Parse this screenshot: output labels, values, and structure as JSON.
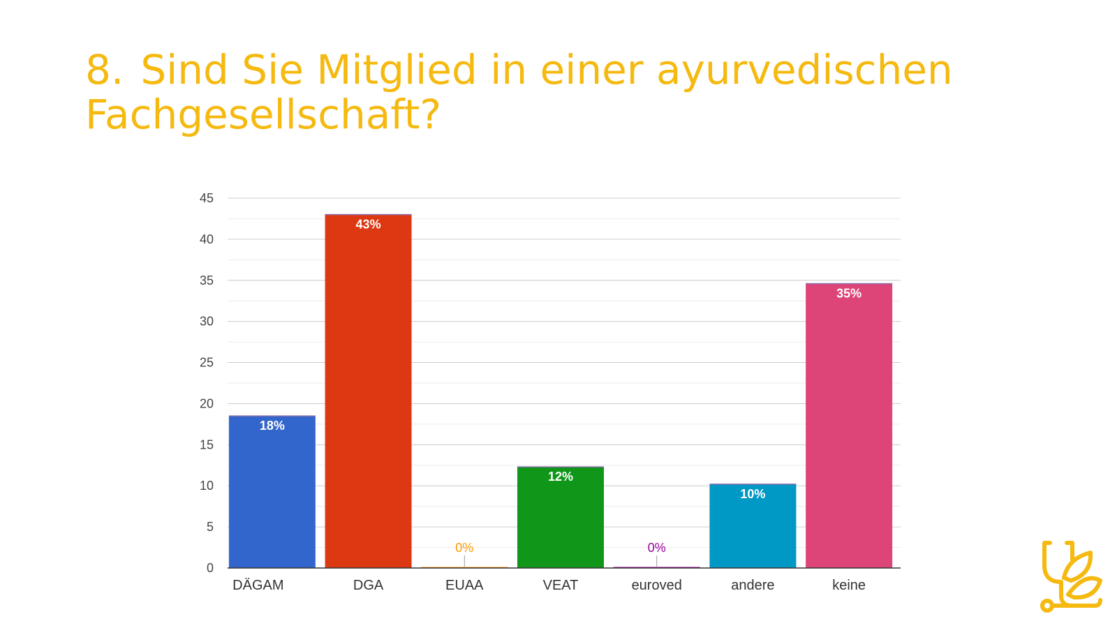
{
  "slide": {
    "number": "8.",
    "title": "Sind Sie Mitglied in einer ayurvedischen Fachgesellschaft?"
  },
  "logo": {
    "icon": "stethoscope-leaf-icon",
    "color": "#f5b90f"
  },
  "chart_data": {
    "type": "bar",
    "categories": [
      "DÄGAM",
      "DGA",
      "EUAA",
      "VEAT",
      "euroved",
      "andere",
      "keine"
    ],
    "values": [
      18.5,
      43,
      0,
      12.3,
      0,
      10.2,
      34.6
    ],
    "labels": [
      "18%",
      "43%",
      "0%",
      "12%",
      "0%",
      "10%",
      "35%"
    ],
    "colors": [
      "#3366cc",
      "#dc3912",
      "#ff9900",
      "#109618",
      "#990099",
      "#0099c6",
      "#dd4477"
    ],
    "ylim": [
      0,
      45
    ],
    "yticks": [
      0,
      5,
      10,
      15,
      20,
      25,
      30,
      35,
      40,
      45
    ],
    "grid": true,
    "title": "",
    "xlabel": "",
    "ylabel": ""
  }
}
